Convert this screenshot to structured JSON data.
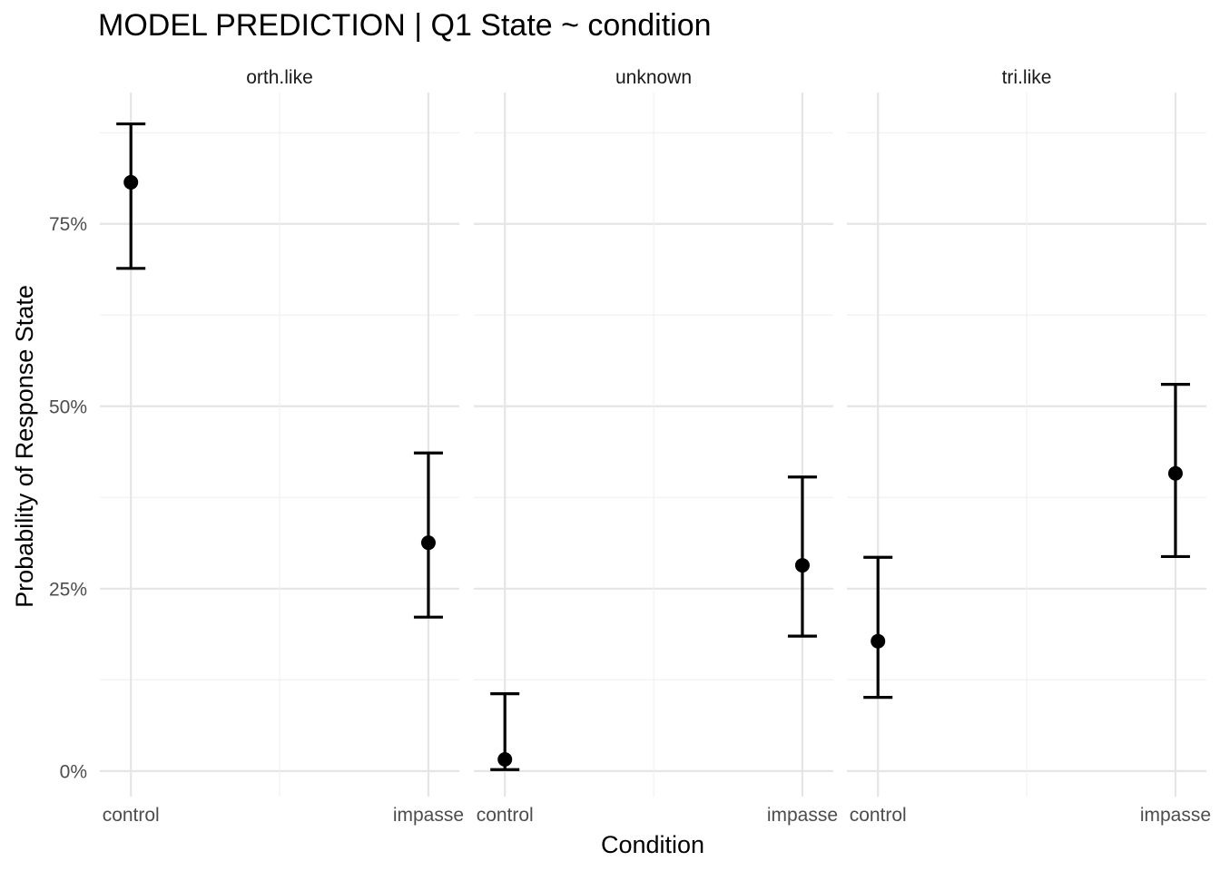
{
  "chart_data": {
    "type": "scatter",
    "title": "MODEL PREDICTION | Q1 State ~ condition",
    "xlabel": "Condition",
    "ylabel": "Probability of Response State",
    "categories": [
      "control",
      "impasse"
    ],
    "y_ticks": [
      "0%",
      "25%",
      "50%",
      "75%"
    ],
    "y_tick_values": [
      0,
      0.25,
      0.5,
      0.75
    ],
    "ylim": [
      -0.035,
      0.93
    ],
    "grid": true,
    "legend": "none",
    "point_color": "#000000",
    "grid_major_color": "#e5e5e5",
    "grid_minor_color": "#f0f0f0",
    "facets": [
      {
        "label": "orth.like",
        "points": [
          {
            "x": "control",
            "y": 0.807,
            "lower": 0.689,
            "upper": 0.887
          },
          {
            "x": "impasse",
            "y": 0.313,
            "lower": 0.211,
            "upper": 0.436
          }
        ]
      },
      {
        "label": "unknown",
        "points": [
          {
            "x": "control",
            "y": 0.016,
            "lower": 0.002,
            "upper": 0.106
          },
          {
            "x": "impasse",
            "y": 0.282,
            "lower": 0.185,
            "upper": 0.403
          }
        ]
      },
      {
        "label": "tri.like",
        "points": [
          {
            "x": "control",
            "y": 0.178,
            "lower": 0.101,
            "upper": 0.293
          },
          {
            "x": "impasse",
            "y": 0.408,
            "lower": 0.294,
            "upper": 0.53
          }
        ]
      }
    ]
  }
}
